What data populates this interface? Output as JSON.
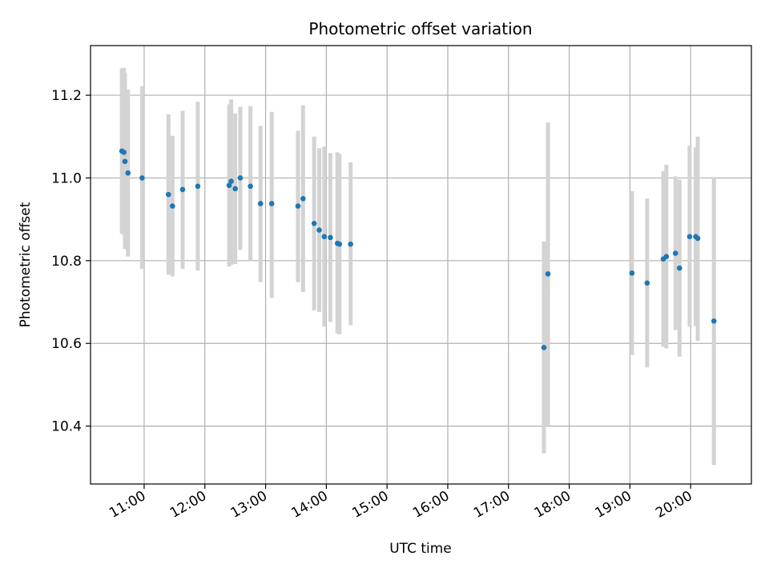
{
  "chart_data": {
    "type": "scatter",
    "title": "Photometric offset variation",
    "xlabel": "UTC time",
    "ylabel": "Photometric offset",
    "xlim": [
      "10:07",
      "21:00"
    ],
    "ylim": [
      10.26,
      11.32
    ],
    "grid": true,
    "x_ticks": [
      "11:00",
      "12:00",
      "13:00",
      "14:00",
      "15:00",
      "16:00",
      "17:00",
      "18:00",
      "19:00",
      "20:00"
    ],
    "y_ticks": [
      10.4,
      10.6,
      10.8,
      11.0,
      11.2
    ],
    "y_tick_labels": [
      "10.4",
      "10.6",
      "10.8",
      "11.0",
      "11.2"
    ],
    "point_color": "#1f77b4",
    "errorbar_color": "#d3d3d3",
    "points": [
      {
        "x": "10:38",
        "y": 11.065,
        "ylow": 10.865,
        "yhigh": 11.265
      },
      {
        "x": "10:40",
        "y": 11.062,
        "ylow": 10.862,
        "yhigh": 11.266
      },
      {
        "x": "10:41",
        "y": 11.04,
        "ylow": 10.828,
        "yhigh": 11.254
      },
      {
        "x": "10:44",
        "y": 11.012,
        "ylow": 10.81,
        "yhigh": 11.214
      },
      {
        "x": "10:58",
        "y": 11.0,
        "ylow": 10.78,
        "yhigh": 11.222
      },
      {
        "x": "11:24",
        "y": 10.96,
        "ylow": 10.766,
        "yhigh": 11.154
      },
      {
        "x": "11:28",
        "y": 10.932,
        "ylow": 10.762,
        "yhigh": 11.102
      },
      {
        "x": "11:38",
        "y": 10.972,
        "ylow": 10.78,
        "yhigh": 11.162
      },
      {
        "x": "11:53",
        "y": 10.98,
        "ylow": 10.776,
        "yhigh": 11.184
      },
      {
        "x": "12:24",
        "y": 10.982,
        "ylow": 10.786,
        "yhigh": 11.178
      },
      {
        "x": "12:26",
        "y": 10.992,
        "ylow": 10.79,
        "yhigh": 11.19
      },
      {
        "x": "12:30",
        "y": 10.974,
        "ylow": 10.792,
        "yhigh": 11.156
      },
      {
        "x": "12:35",
        "y": 11.0,
        "ylow": 10.826,
        "yhigh": 11.172
      },
      {
        "x": "12:45",
        "y": 10.98,
        "ylow": 10.8,
        "yhigh": 11.174
      },
      {
        "x": "12:55",
        "y": 10.938,
        "ylow": 10.748,
        "yhigh": 11.126
      },
      {
        "x": "13:06",
        "y": 10.938,
        "ylow": 10.71,
        "yhigh": 11.16
      },
      {
        "x": "13:32",
        "y": 10.932,
        "ylow": 10.748,
        "yhigh": 11.114
      },
      {
        "x": "13:37",
        "y": 10.95,
        "ylow": 10.724,
        "yhigh": 11.176
      },
      {
        "x": "13:48",
        "y": 10.89,
        "ylow": 10.68,
        "yhigh": 11.1
      },
      {
        "x": "13:53",
        "y": 10.874,
        "ylow": 10.676,
        "yhigh": 11.072
      },
      {
        "x": "13:58",
        "y": 10.858,
        "ylow": 10.64,
        "yhigh": 11.076
      },
      {
        "x": "14:04",
        "y": 10.856,
        "ylow": 10.652,
        "yhigh": 11.06
      },
      {
        "x": "14:11",
        "y": 10.842,
        "ylow": 10.624,
        "yhigh": 11.062
      },
      {
        "x": "14:13",
        "y": 10.84,
        "ylow": 10.622,
        "yhigh": 11.058
      },
      {
        "x": "14:24",
        "y": 10.84,
        "ylow": 10.644,
        "yhigh": 11.038
      },
      {
        "x": "17:35",
        "y": 10.59,
        "ylow": 10.334,
        "yhigh": 10.846
      },
      {
        "x": "17:39",
        "y": 10.768,
        "ylow": 10.402,
        "yhigh": 11.134
      },
      {
        "x": "19:02",
        "y": 10.77,
        "ylow": 10.572,
        "yhigh": 10.968
      },
      {
        "x": "19:17",
        "y": 10.746,
        "ylow": 10.542,
        "yhigh": 10.95
      },
      {
        "x": "19:33",
        "y": 10.804,
        "ylow": 10.592,
        "yhigh": 11.016
      },
      {
        "x": "19:36",
        "y": 10.81,
        "ylow": 10.588,
        "yhigh": 11.032
      },
      {
        "x": "19:45",
        "y": 10.818,
        "ylow": 10.632,
        "yhigh": 11.004
      },
      {
        "x": "19:49",
        "y": 10.782,
        "ylow": 10.568,
        "yhigh": 10.996
      },
      {
        "x": "19:59",
        "y": 10.858,
        "ylow": 10.64,
        "yhigh": 11.078
      },
      {
        "x": "20:05",
        "y": 10.858,
        "ylow": 10.642,
        "yhigh": 11.074
      },
      {
        "x": "20:07",
        "y": 10.854,
        "ylow": 10.606,
        "yhigh": 11.1
      },
      {
        "x": "20:23",
        "y": 10.654,
        "ylow": 10.306,
        "yhigh": 11.002
      }
    ]
  }
}
